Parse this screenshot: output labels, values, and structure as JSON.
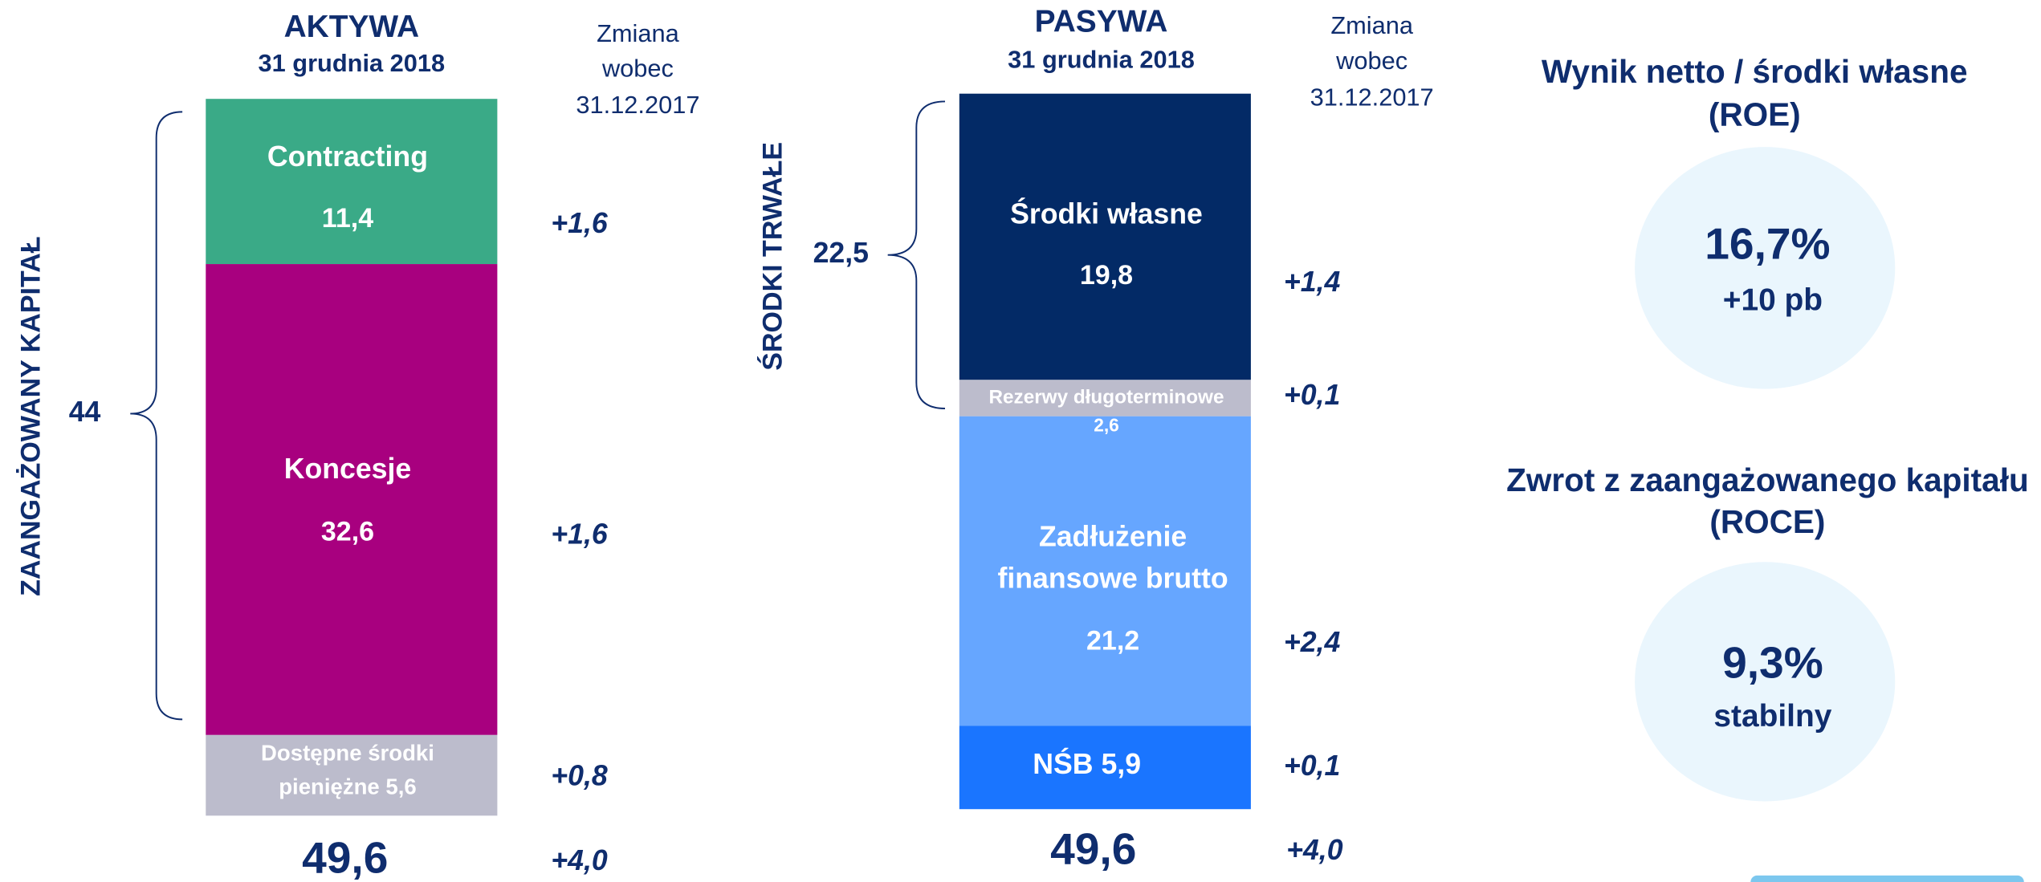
{
  "assets": {
    "title": "AKTYWA",
    "date": "31 grudnia 2018",
    "change_header": [
      "Zmiana",
      "wobec",
      "31.12.2017"
    ],
    "brace_label": "ZAANGAŻOWANY KAPITAŁ",
    "brace_value": "44",
    "segments": [
      {
        "name": "Contracting",
        "value": "11,4",
        "change": "+1,6"
      },
      {
        "name": "Koncesje",
        "value": "32,6",
        "change": "+1,6"
      },
      {
        "name": [
          "Dostępne środki",
          "pieniężne 5,6"
        ],
        "change": "+0,8"
      }
    ],
    "total": "49,6",
    "total_change": "+4,0"
  },
  "liabilities": {
    "title": "PASYWA",
    "date": "31 grudnia 2018",
    "change_header": [
      "Zmiana",
      "wobec",
      "31.12.2017"
    ],
    "brace_label": "ŚRODKI TRWAŁE",
    "brace_value": "22,5",
    "segments": [
      {
        "name": "Środki własne",
        "value": "19,8",
        "change": "+1,4"
      },
      {
        "name": "Rezerwy długoterminowe",
        "value": "2,6",
        "change": "+0,1"
      },
      {
        "name": [
          "Zadłużenie",
          "finansowe brutto"
        ],
        "value": "21,2",
        "change": "+2,4"
      },
      {
        "name": "NŚB 5,9",
        "change": "+0,1"
      }
    ],
    "total": "49,6",
    "total_change": "+4,0"
  },
  "roe": {
    "title": [
      "Wynik netto / środki własne",
      "(ROE)"
    ],
    "value": "16,7%",
    "change": "+10 pb"
  },
  "roce": {
    "title": [
      "Zwrot z zaangażowanego kapitału",
      "(ROCE)"
    ],
    "value": "9,3%",
    "change": "stabilny"
  }
}
